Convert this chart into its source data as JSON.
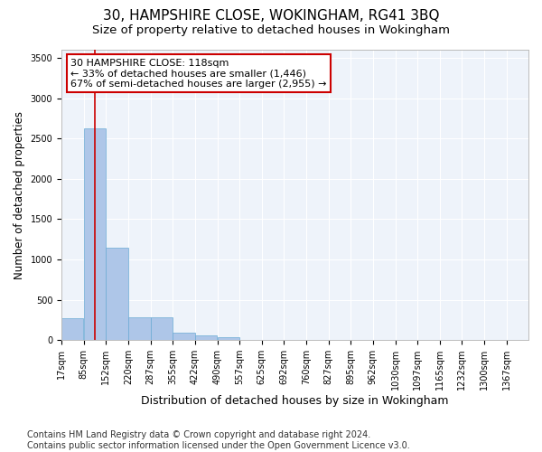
{
  "title": "30, HAMPSHIRE CLOSE, WOKINGHAM, RG41 3BQ",
  "subtitle": "Size of property relative to detached houses in Wokingham",
  "xlabel": "Distribution of detached houses by size in Wokingham",
  "ylabel": "Number of detached properties",
  "bar_color": "#aec6e8",
  "bar_edge_color": "#6aaad4",
  "background_color": "#eef3fa",
  "grid_color": "#ffffff",
  "annotation_box_color": "#cc0000",
  "annotation_line1": "30 HAMPSHIRE CLOSE: 118sqm",
  "annotation_line2": "← 33% of detached houses are smaller (1,446)",
  "annotation_line3": "67% of semi-detached houses are larger (2,955) →",
  "vline_x": 118,
  "vline_color": "#cc0000",
  "categories": [
    "17sqm",
    "85sqm",
    "152sqm",
    "220sqm",
    "287sqm",
    "355sqm",
    "422sqm",
    "490sqm",
    "557sqm",
    "625sqm",
    "692sqm",
    "760sqm",
    "827sqm",
    "895sqm",
    "962sqm",
    "1030sqm",
    "1097sqm",
    "1165sqm",
    "1232sqm",
    "1300sqm",
    "1367sqm"
  ],
  "bin_edges": [
    17,
    85,
    152,
    220,
    287,
    355,
    422,
    490,
    557,
    625,
    692,
    760,
    827,
    895,
    962,
    1030,
    1097,
    1165,
    1232,
    1300,
    1367
  ],
  "bin_width": 67,
  "values": [
    270,
    2630,
    1150,
    285,
    285,
    90,
    55,
    35,
    0,
    0,
    0,
    0,
    0,
    0,
    0,
    0,
    0,
    0,
    0,
    0
  ],
  "ylim": [
    0,
    3600
  ],
  "yticks": [
    0,
    500,
    1000,
    1500,
    2000,
    2500,
    3000,
    3500
  ],
  "footer_line1": "Contains HM Land Registry data © Crown copyright and database right 2024.",
  "footer_line2": "Contains public sector information licensed under the Open Government Licence v3.0.",
  "title_fontsize": 11,
  "subtitle_fontsize": 9.5,
  "xlabel_fontsize": 9,
  "ylabel_fontsize": 8.5,
  "tick_fontsize": 7,
  "footer_fontsize": 7,
  "annotation_fontsize": 8
}
